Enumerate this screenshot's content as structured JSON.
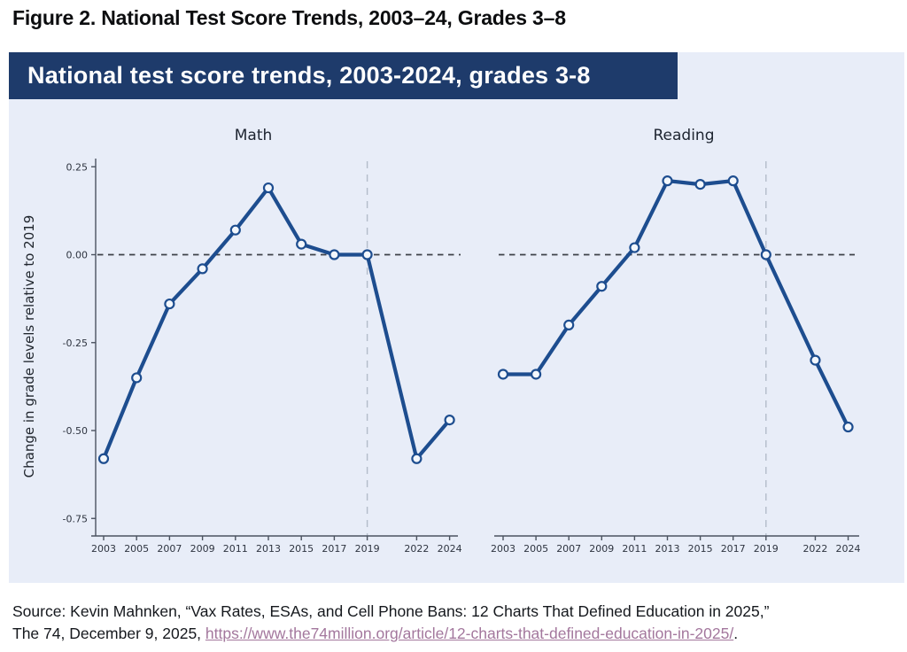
{
  "figure_title": "Figure 2. National Test Score Trends, 2003–24, Grades 3–8",
  "banner_title": "National test score trends, 2003-2024, grades 3-8",
  "source": {
    "line1": "Source: Kevin Mahnken, “Vax Rates, ESAs, and Cell Phone Bans: 12 Charts That Defined Education in 2025,”",
    "line2_prefix": "The 74, December 9, 2025, ",
    "link_text": "https://www.the74million.org/article/12-charts-that-defined-education-in-2025/",
    "line2_suffix": "."
  },
  "colors": {
    "banner_bg": "#1e3b6b",
    "banner_text": "#ffffff",
    "card_bg": "#e8edf8",
    "line": "#1d4d8f",
    "axis": "#4b5360",
    "ref_line_h": "#3d4148",
    "ref_line_v": "#b3bcca",
    "link": "#a3779d",
    "text": "#15181d"
  },
  "chart_data": [
    {
      "type": "line",
      "title": "Math",
      "x": [
        2003,
        2005,
        2007,
        2009,
        2011,
        2013,
        2015,
        2017,
        2019,
        2022,
        2024
      ],
      "values": [
        -0.58,
        -0.35,
        -0.14,
        -0.04,
        0.07,
        0.19,
        0.03,
        0,
        0,
        -0.58,
        -0.47
      ],
      "xlabel": "",
      "ylabel": "Change in grade levels relative to 2019",
      "ylim": [
        -0.75,
        0.25
      ],
      "yticks": [
        0.25,
        0,
        -0.25,
        -0.5,
        -0.75
      ],
      "zero_line": 0,
      "vline_year": 2019,
      "grid": false,
      "legend": "none"
    },
    {
      "type": "line",
      "title": "Reading",
      "x": [
        2003,
        2005,
        2007,
        2009,
        2011,
        2013,
        2015,
        2017,
        2019,
        2022,
        2024
      ],
      "values": [
        -0.34,
        -0.34,
        -0.2,
        -0.09,
        0.02,
        0.21,
        0.2,
        0.21,
        0,
        -0.3,
        -0.49
      ],
      "xlabel": "",
      "ylabel": "",
      "ylim": [
        -0.75,
        0.25
      ],
      "yticks": [
        0.25,
        0,
        -0.25,
        -0.5,
        -0.75
      ],
      "zero_line": 0,
      "vline_year": 2019,
      "grid": false,
      "legend": "none"
    }
  ]
}
